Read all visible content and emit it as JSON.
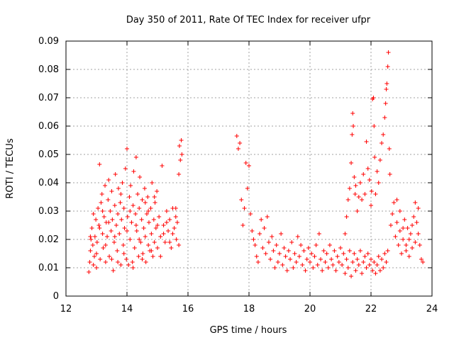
{
  "chart_data": {
    "type": "scatter",
    "title": "Day 350 of 2011, Rate Of TEC Index for receiver ufpr",
    "xlabel": "GPS time / hours",
    "ylabel": "ROTI / TECUs",
    "xlim": [
      12,
      24
    ],
    "ylim": [
      0,
      0.09
    ],
    "x_ticks": [
      "12",
      "14",
      "16",
      "18",
      "20",
      "22",
      "24"
    ],
    "y_ticks": [
      "0",
      "0.01",
      "0.02",
      "0.03",
      "0.04",
      "0.05",
      "0.06",
      "0.07",
      "0.08",
      "0.09"
    ],
    "grid": true,
    "marker": "plus",
    "color": "#ff0000",
    "series": [
      {
        "points": [
          [
            12.75,
            0.0085
          ],
          [
            12.78,
            0.012
          ],
          [
            12.8,
            0.016
          ],
          [
            12.82,
            0.02
          ],
          [
            12.85,
            0.024
          ],
          [
            12.88,
            0.018
          ],
          [
            12.9,
            0.011
          ],
          [
            12.93,
            0.014
          ],
          [
            12.95,
            0.021
          ],
          [
            12.98,
            0.027
          ],
          [
            13.0,
            0.015
          ],
          [
            13.02,
            0.019
          ],
          [
            13.05,
            0.031
          ],
          [
            13.08,
            0.025
          ],
          [
            13.1,
            0.0465
          ],
          [
            13.12,
            0.013
          ],
          [
            13.15,
            0.033
          ],
          [
            13.18,
            0.036
          ],
          [
            13.2,
            0.022
          ],
          [
            13.22,
            0.017
          ],
          [
            13.25,
            0.028
          ],
          [
            13.28,
            0.039
          ],
          [
            13.3,
            0.012
          ],
          [
            13.32,
            0.026
          ],
          [
            13.35,
            0.021
          ],
          [
            13.38,
            0.034
          ],
          [
            13.4,
            0.041
          ],
          [
            13.42,
            0.014
          ],
          [
            13.45,
            0.03
          ],
          [
            13.48,
            0.023
          ],
          [
            13.5,
            0.037
          ],
          [
            13.52,
            0.027
          ],
          [
            13.55,
            0.009
          ],
          [
            13.58,
            0.019
          ],
          [
            13.6,
            0.032
          ],
          [
            13.62,
            0.043
          ],
          [
            13.65,
            0.025
          ],
          [
            13.68,
            0.016
          ],
          [
            13.7,
            0.029
          ],
          [
            13.72,
            0.038
          ],
          [
            13.75,
            0.022
          ],
          [
            13.78,
            0.033
          ],
          [
            13.8,
            0.011
          ],
          [
            13.82,
            0.027
          ],
          [
            13.85,
            0.04
          ],
          [
            13.88,
            0.018
          ],
          [
            13.9,
            0.031
          ],
          [
            13.92,
            0.024
          ],
          [
            13.95,
            0.045
          ],
          [
            13.98,
            0.013
          ],
          [
            14.0,
            0.052
          ],
          [
            14.02,
            0.028
          ],
          [
            14.05,
            0.011
          ],
          [
            14.08,
            0.035
          ],
          [
            14.1,
            0.02
          ],
          [
            14.12,
            0.039
          ],
          [
            14.15,
            0.026
          ],
          [
            14.18,
            0.012
          ],
          [
            14.2,
            0.032
          ],
          [
            14.22,
            0.044
          ],
          [
            14.25,
            0.017
          ],
          [
            14.28,
            0.029
          ],
          [
            14.3,
            0.049
          ],
          [
            14.32,
            0.023
          ],
          [
            14.35,
            0.036
          ],
          [
            14.38,
            0.014
          ],
          [
            14.4,
            0.031
          ],
          [
            14.42,
            0.042
          ],
          [
            14.45,
            0.019
          ],
          [
            14.48,
            0.027
          ],
          [
            14.5,
            0.034
          ],
          [
            14.52,
            0.015
          ],
          [
            14.55,
            0.024
          ],
          [
            14.58,
            0.038
          ],
          [
            14.6,
            0.021
          ],
          [
            14.62,
            0.012
          ],
          [
            14.65,
            0.029
          ],
          [
            14.68,
            0.035
          ],
          [
            14.7,
            0.018
          ],
          [
            14.72,
            0.026
          ],
          [
            14.75,
            0.016
          ],
          [
            14.78,
            0.031
          ],
          [
            14.8,
            0.022
          ],
          [
            14.82,
            0.04
          ],
          [
            14.85,
            0.014
          ],
          [
            14.88,
            0.027
          ],
          [
            14.9,
            0.019
          ],
          [
            14.92,
            0.033
          ],
          [
            14.95,
            0.024
          ],
          [
            14.98,
            0.037
          ],
          [
            15.0,
            0.017
          ],
          [
            15.05,
            0.028
          ],
          [
            15.1,
            0.021
          ],
          [
            15.15,
            0.046
          ],
          [
            15.2,
            0.025
          ],
          [
            15.25,
            0.019
          ],
          [
            15.3,
            0.03
          ],
          [
            15.35,
            0.023
          ],
          [
            15.4,
            0.027
          ],
          [
            15.45,
            0.017
          ],
          [
            15.5,
            0.031
          ],
          [
            15.55,
            0.024
          ],
          [
            15.6,
            0.028
          ],
          [
            15.62,
            0.02
          ],
          [
            15.65,
            0.026
          ],
          [
            15.7,
            0.043
          ],
          [
            15.72,
            0.053
          ],
          [
            15.75,
            0.048
          ],
          [
            15.78,
            0.055
          ],
          [
            15.8,
            0.05
          ],
          [
            12.8,
            0.021
          ],
          [
            12.9,
            0.029
          ],
          [
            13.0,
            0.01
          ],
          [
            13.1,
            0.024
          ],
          [
            13.2,
            0.03
          ],
          [
            13.3,
            0.018
          ],
          [
            13.4,
            0.026
          ],
          [
            13.5,
            0.013
          ],
          [
            13.6,
            0.021
          ],
          [
            13.7,
            0.012
          ],
          [
            13.8,
            0.036
          ],
          [
            13.9,
            0.015
          ],
          [
            14.0,
            0.023
          ],
          [
            14.1,
            0.03
          ],
          [
            14.2,
            0.01
          ],
          [
            14.3,
            0.025
          ],
          [
            14.4,
            0.02
          ],
          [
            14.5,
            0.013
          ],
          [
            14.6,
            0.033
          ],
          [
            14.7,
            0.03
          ],
          [
            14.8,
            0.016
          ],
          [
            14.9,
            0.035
          ],
          [
            15.0,
            0.025
          ],
          [
            15.1,
            0.014
          ],
          [
            15.2,
            0.022
          ],
          [
            15.3,
            0.026
          ],
          [
            15.4,
            0.019
          ],
          [
            15.5,
            0.022
          ],
          [
            15.6,
            0.031
          ],
          [
            15.7,
            0.018
          ],
          [
            17.6,
            0.0565
          ],
          [
            17.65,
            0.052
          ],
          [
            17.7,
            0.054
          ],
          [
            17.75,
            0.034
          ],
          [
            17.8,
            0.025
          ],
          [
            17.85,
            0.031
          ],
          [
            17.9,
            0.047
          ],
          [
            17.95,
            0.038
          ],
          [
            18.0,
            0.046
          ],
          [
            18.05,
            0.029
          ],
          [
            18.1,
            0.023
          ],
          [
            18.15,
            0.02
          ],
          [
            18.2,
            0.018
          ],
          [
            18.25,
            0.014
          ],
          [
            18.3,
            0.012
          ],
          [
            18.35,
            0.022
          ],
          [
            18.4,
            0.027
          ],
          [
            18.45,
            0.017
          ],
          [
            18.5,
            0.024
          ],
          [
            18.55,
            0.015
          ],
          [
            18.6,
            0.028
          ],
          [
            18.65,
            0.019
          ],
          [
            18.7,
            0.013
          ],
          [
            18.75,
            0.021
          ],
          [
            18.8,
            0.016
          ],
          [
            18.85,
            0.01
          ],
          [
            18.9,
            0.018
          ],
          [
            18.95,
            0.012
          ],
          [
            19.0,
            0.015
          ],
          [
            19.05,
            0.022
          ],
          [
            19.1,
            0.011
          ],
          [
            19.15,
            0.017
          ],
          [
            19.2,
            0.014
          ],
          [
            19.25,
            0.009
          ],
          [
            19.3,
            0.016
          ],
          [
            19.35,
            0.013
          ],
          [
            19.4,
            0.019
          ],
          [
            19.45,
            0.01
          ],
          [
            19.5,
            0.015
          ],
          [
            19.55,
            0.012
          ],
          [
            19.6,
            0.021
          ],
          [
            19.65,
            0.014
          ],
          [
            19.7,
            0.018
          ],
          [
            19.75,
            0.011
          ],
          [
            19.8,
            0.016
          ],
          [
            19.85,
            0.009
          ],
          [
            19.9,
            0.013
          ],
          [
            19.95,
            0.017
          ],
          [
            20.0,
            0.012
          ],
          [
            20.05,
            0.015
          ],
          [
            20.1,
            0.01
          ],
          [
            20.15,
            0.014
          ],
          [
            20.2,
            0.018
          ],
          [
            20.25,
            0.011
          ],
          [
            20.3,
            0.022
          ],
          [
            20.35,
            0.013
          ],
          [
            20.4,
            0.009
          ],
          [
            20.45,
            0.016
          ],
          [
            20.5,
            0.012
          ],
          [
            20.55,
            0.015
          ],
          [
            20.6,
            0.01
          ],
          [
            20.65,
            0.018
          ],
          [
            20.7,
            0.013
          ],
          [
            20.75,
            0.011
          ],
          [
            20.8,
            0.016
          ],
          [
            20.85,
            0.009
          ],
          [
            20.9,
            0.014
          ],
          [
            20.95,
            0.012
          ],
          [
            21.0,
            0.017
          ],
          [
            21.05,
            0.011
          ],
          [
            21.1,
            0.015
          ],
          [
            21.15,
            0.008
          ],
          [
            21.2,
            0.013
          ],
          [
            21.25,
            0.01
          ],
          [
            21.3,
            0.016
          ],
          [
            21.35,
            0.007
          ],
          [
            21.4,
            0.012
          ],
          [
            21.45,
            0.015
          ],
          [
            21.5,
            0.009
          ],
          [
            21.55,
            0.013
          ],
          [
            21.6,
            0.011
          ],
          [
            21.65,
            0.016
          ],
          [
            21.7,
            0.008
          ],
          [
            21.75,
            0.012
          ],
          [
            21.8,
            0.014
          ],
          [
            21.85,
            0.01
          ],
          [
            21.9,
            0.015
          ],
          [
            21.95,
            0.011
          ],
          [
            22.0,
            0.013
          ],
          [
            22.05,
            0.009
          ],
          [
            22.1,
            0.012
          ],
          [
            22.15,
            0.008
          ],
          [
            22.2,
            0.011
          ],
          [
            22.25,
            0.014
          ],
          [
            22.3,
            0.009
          ],
          [
            22.35,
            0.013
          ],
          [
            22.4,
            0.01
          ],
          [
            22.45,
            0.015
          ],
          [
            22.5,
            0.012
          ],
          [
            22.55,
            0.016
          ],
          [
            21.15,
            0.022
          ],
          [
            21.2,
            0.028
          ],
          [
            21.25,
            0.034
          ],
          [
            21.3,
            0.038
          ],
          [
            21.35,
            0.047
          ],
          [
            21.38,
            0.057
          ],
          [
            21.4,
            0.0645
          ],
          [
            21.42,
            0.06
          ],
          [
            21.45,
            0.042
          ],
          [
            21.48,
            0.036
          ],
          [
            21.5,
            0.039
          ],
          [
            21.55,
            0.03
          ],
          [
            21.6,
            0.035
          ],
          [
            21.65,
            0.04
          ],
          [
            21.7,
            0.034
          ],
          [
            21.75,
            0.043
          ],
          [
            21.8,
            0.036
          ],
          [
            21.85,
            0.0545
          ],
          [
            21.9,
            0.045
          ],
          [
            21.95,
            0.041
          ],
          [
            22.0,
            0.032
          ],
          [
            22.02,
            0.037
          ],
          [
            22.05,
            0.0695
          ],
          [
            22.08,
            0.07
          ],
          [
            22.1,
            0.06
          ],
          [
            22.12,
            0.049
          ],
          [
            22.15,
            0.036
          ],
          [
            22.2,
            0.044
          ],
          [
            22.25,
            0.04
          ],
          [
            22.3,
            0.048
          ],
          [
            22.35,
            0.054
          ],
          [
            22.4,
            0.057
          ],
          [
            22.45,
            0.063
          ],
          [
            22.48,
            0.068
          ],
          [
            22.5,
            0.073
          ],
          [
            22.52,
            0.075
          ],
          [
            22.55,
            0.081
          ],
          [
            22.57,
            0.086
          ],
          [
            22.6,
            0.052
          ],
          [
            22.62,
            0.043
          ],
          [
            22.65,
            0.025
          ],
          [
            22.7,
            0.029
          ],
          [
            22.75,
            0.033
          ],
          [
            22.8,
            0.021
          ],
          [
            22.85,
            0.026
          ],
          [
            22.9,
            0.018
          ],
          [
            22.95,
            0.023
          ],
          [
            23.0,
            0.015
          ],
          [
            23.05,
            0.02
          ],
          [
            23.1,
            0.027
          ],
          [
            23.15,
            0.018
          ],
          [
            23.2,
            0.024
          ],
          [
            23.25,
            0.014
          ],
          [
            23.3,
            0.022
          ],
          [
            23.35,
            0.017
          ],
          [
            23.4,
            0.028
          ],
          [
            23.45,
            0.033
          ],
          [
            23.5,
            0.026
          ],
          [
            23.55,
            0.022
          ],
          [
            23.6,
            0.018
          ],
          [
            23.65,
            0.013
          ],
          [
            23.7,
            0.012
          ],
          [
            23.55,
            0.031
          ],
          [
            23.45,
            0.019
          ],
          [
            23.35,
            0.025
          ],
          [
            23.25,
            0.02
          ],
          [
            23.15,
            0.016
          ],
          [
            23.05,
            0.024
          ],
          [
            22.95,
            0.03
          ],
          [
            22.85,
            0.034
          ]
        ]
      }
    ]
  }
}
